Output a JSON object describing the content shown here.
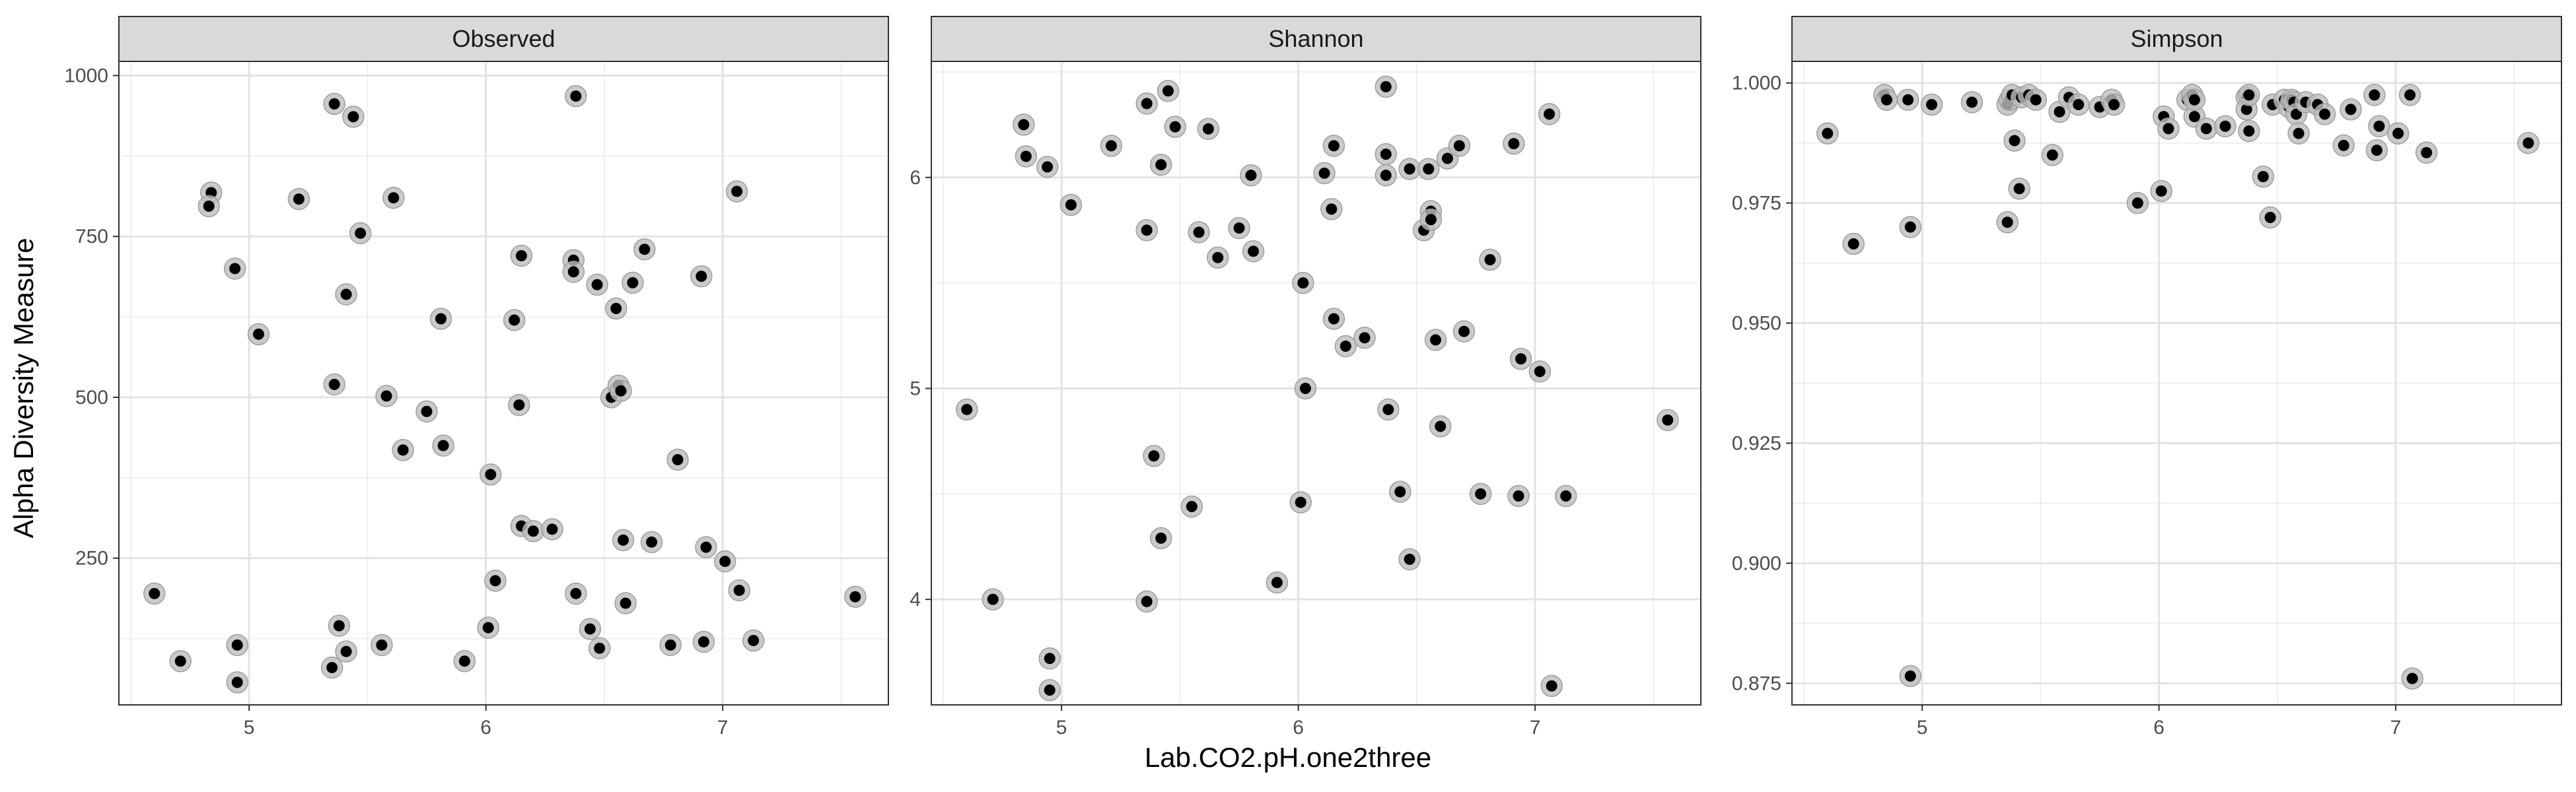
{
  "chart_data": {
    "type": "scatter",
    "xlabel": "Lab.CO2.pH.one2three",
    "ylabel": "Alpha Diversity Measure",
    "grid": true,
    "legend": "none",
    "colors": {
      "point": "#000000",
      "halo": "#bdbdbd",
      "strip": "#d9d9d9",
      "grid": "#ebebeb"
    },
    "panels": [
      {
        "strip": "Observed",
        "xlim": [
          4.45,
          7.7
        ],
        "ylim": [
          22,
          1022
        ],
        "x_ticks": [
          5,
          6,
          7
        ],
        "y_ticks": [
          250,
          500,
          750,
          1000
        ],
        "points": [
          [
            4.6,
            195
          ],
          [
            4.71,
            90
          ],
          [
            4.84,
            818
          ],
          [
            4.83,
            797
          ],
          [
            4.94,
            700
          ],
          [
            4.95,
            115
          ],
          [
            4.95,
            57
          ],
          [
            5.04,
            598
          ],
          [
            5.21,
            808
          ],
          [
            5.36,
            956
          ],
          [
            5.36,
            520
          ],
          [
            5.35,
            80
          ],
          [
            5.38,
            145
          ],
          [
            5.41,
            660
          ],
          [
            5.41,
            105
          ],
          [
            5.44,
            936
          ],
          [
            5.47,
            755
          ],
          [
            5.56,
            115
          ],
          [
            5.58,
            502
          ],
          [
            5.61,
            810
          ],
          [
            5.65,
            418
          ],
          [
            5.75,
            478
          ],
          [
            5.81,
            622
          ],
          [
            5.82,
            425
          ],
          [
            5.91,
            90
          ],
          [
            6.01,
            142
          ],
          [
            6.02,
            380
          ],
          [
            6.04,
            215
          ],
          [
            6.12,
            620
          ],
          [
            6.14,
            488
          ],
          [
            6.15,
            720
          ],
          [
            6.15,
            300
          ],
          [
            6.2,
            292
          ],
          [
            6.28,
            295
          ],
          [
            6.37,
            713
          ],
          [
            6.37,
            695
          ],
          [
            6.38,
            968
          ],
          [
            6.38,
            195
          ],
          [
            6.44,
            140
          ],
          [
            6.47,
            675
          ],
          [
            6.48,
            110
          ],
          [
            6.53,
            500
          ],
          [
            6.55,
            638
          ],
          [
            6.56,
            518
          ],
          [
            6.57,
            510
          ],
          [
            6.58,
            278
          ],
          [
            6.59,
            180
          ],
          [
            6.62,
            678
          ],
          [
            6.67,
            730
          ],
          [
            6.7,
            275
          ],
          [
            6.78,
            115
          ],
          [
            6.81,
            403
          ],
          [
            6.91,
            688
          ],
          [
            6.92,
            120
          ],
          [
            6.93,
            267
          ],
          [
            7.01,
            245
          ],
          [
            7.06,
            820
          ],
          [
            7.07,
            200
          ],
          [
            7.13,
            122
          ],
          [
            7.56,
            190
          ]
        ]
      },
      {
        "strip": "Shannon",
        "xlim": [
          4.45,
          7.7
        ],
        "ylim": [
          3.5,
          6.55
        ],
        "x_ticks": [
          5,
          6,
          7
        ],
        "y_ticks": [
          4,
          5,
          6
        ],
        "points": [
          [
            4.6,
            4.9
          ],
          [
            4.71,
            4.0
          ],
          [
            4.84,
            6.25
          ],
          [
            4.85,
            6.1
          ],
          [
            4.94,
            6.05
          ],
          [
            4.95,
            3.72
          ],
          [
            4.95,
            3.57
          ],
          [
            5.04,
            5.87
          ],
          [
            5.21,
            6.15
          ],
          [
            5.36,
            6.35
          ],
          [
            5.36,
            5.75
          ],
          [
            5.36,
            3.99
          ],
          [
            5.39,
            4.68
          ],
          [
            5.42,
            4.29
          ],
          [
            5.42,
            6.06
          ],
          [
            5.45,
            6.41
          ],
          [
            5.48,
            6.24
          ],
          [
            5.55,
            4.44
          ],
          [
            5.58,
            5.74
          ],
          [
            5.62,
            6.23
          ],
          [
            5.66,
            5.62
          ],
          [
            5.75,
            5.76
          ],
          [
            5.8,
            6.01
          ],
          [
            5.81,
            5.65
          ],
          [
            5.91,
            4.08
          ],
          [
            6.01,
            4.46
          ],
          [
            6.02,
            5.5
          ],
          [
            6.03,
            5.0
          ],
          [
            6.11,
            6.02
          ],
          [
            6.14,
            5.85
          ],
          [
            6.15,
            6.15
          ],
          [
            6.15,
            5.33
          ],
          [
            6.2,
            5.2
          ],
          [
            6.28,
            5.24
          ],
          [
            6.37,
            6.43
          ],
          [
            6.37,
            6.11
          ],
          [
            6.37,
            6.01
          ],
          [
            6.38,
            4.9
          ],
          [
            6.43,
            4.51
          ],
          [
            6.47,
            4.19
          ],
          [
            6.47,
            6.04
          ],
          [
            6.53,
            5.75
          ],
          [
            6.55,
            6.04
          ],
          [
            6.56,
            5.84
          ],
          [
            6.56,
            5.8
          ],
          [
            6.58,
            5.23
          ],
          [
            6.6,
            4.82
          ],
          [
            6.63,
            6.09
          ],
          [
            6.68,
            6.15
          ],
          [
            6.7,
            5.27
          ],
          [
            6.77,
            4.5
          ],
          [
            6.81,
            5.61
          ],
          [
            6.91,
            6.16
          ],
          [
            6.93,
            4.49
          ],
          [
            6.94,
            5.14
          ],
          [
            7.02,
            5.08
          ],
          [
            7.06,
            6.3
          ],
          [
            7.07,
            3.59
          ],
          [
            7.13,
            4.49
          ],
          [
            7.56,
            4.85
          ]
        ]
      },
      {
        "strip": "Simpson",
        "xlim": [
          4.45,
          7.7
        ],
        "ylim": [
          0.8705,
          1.0045
        ],
        "x_ticks": [
          5,
          6,
          7
        ],
        "y_ticks": [
          0.875,
          0.9,
          0.925,
          0.95,
          0.975,
          1.0
        ],
        "y_tick_labels": [
          "0.875",
          "0.900",
          "0.925",
          "0.950",
          "0.975",
          "1.000"
        ],
        "points": [
          [
            4.6,
            0.9895
          ],
          [
            4.71,
            0.9665
          ],
          [
            4.84,
            0.9975
          ],
          [
            4.85,
            0.9965
          ],
          [
            4.94,
            0.9965
          ],
          [
            4.95,
            0.97
          ],
          [
            4.95,
            0.8765
          ],
          [
            5.04,
            0.9955
          ],
          [
            5.21,
            0.996
          ],
          [
            5.36,
            0.9955
          ],
          [
            5.36,
            0.971
          ],
          [
            5.37,
            0.9965
          ],
          [
            5.38,
            0.9975
          ],
          [
            5.39,
            0.988
          ],
          [
            5.41,
            0.978
          ],
          [
            5.42,
            0.997
          ],
          [
            5.45,
            0.9975
          ],
          [
            5.48,
            0.9965
          ],
          [
            5.55,
            0.985
          ],
          [
            5.58,
            0.994
          ],
          [
            5.62,
            0.997
          ],
          [
            5.66,
            0.9955
          ],
          [
            5.75,
            0.995
          ],
          [
            5.8,
            0.9965
          ],
          [
            5.81,
            0.9955
          ],
          [
            5.91,
            0.975
          ],
          [
            6.01,
            0.9775
          ],
          [
            6.02,
            0.993
          ],
          [
            6.04,
            0.9905
          ],
          [
            6.12,
            0.9965
          ],
          [
            6.14,
            0.9975
          ],
          [
            6.15,
            0.993
          ],
          [
            6.15,
            0.9965
          ],
          [
            6.2,
            0.9905
          ],
          [
            6.28,
            0.991
          ],
          [
            6.37,
            0.997
          ],
          [
            6.37,
            0.9945
          ],
          [
            6.38,
            0.9975
          ],
          [
            6.38,
            0.99
          ],
          [
            6.44,
            0.9805
          ],
          [
            6.47,
            0.972
          ],
          [
            6.48,
            0.9955
          ],
          [
            6.53,
            0.9965
          ],
          [
            6.55,
            0.995
          ],
          [
            6.56,
            0.9965
          ],
          [
            6.57,
            0.996
          ],
          [
            6.58,
            0.9935
          ],
          [
            6.59,
            0.9895
          ],
          [
            6.62,
            0.996
          ],
          [
            6.67,
            0.9955
          ],
          [
            6.7,
            0.9935
          ],
          [
            6.78,
            0.987
          ],
          [
            6.81,
            0.9945
          ],
          [
            6.91,
            0.9975
          ],
          [
            6.92,
            0.986
          ],
          [
            6.93,
            0.991
          ],
          [
            7.01,
            0.9895
          ],
          [
            7.06,
            0.9975
          ],
          [
            7.07,
            0.876
          ],
          [
            7.13,
            0.9855
          ],
          [
            7.56,
            0.9875
          ]
        ]
      }
    ]
  }
}
